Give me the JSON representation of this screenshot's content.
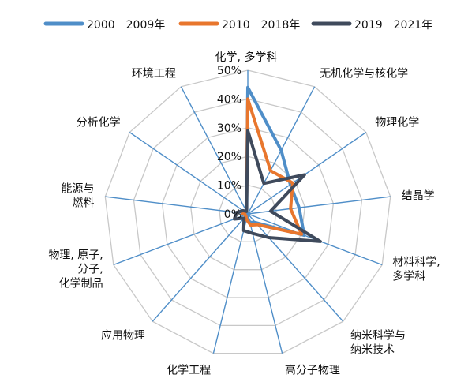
{
  "chart_data": {
    "type": "radar",
    "title": "",
    "axes": [
      [
        "化学, 多学科"
      ],
      [
        "无机化学与核化学"
      ],
      [
        "物理化学"
      ],
      [
        "结晶学"
      ],
      [
        "材料科学,",
        "多学科"
      ],
      [
        "纳米科学与",
        "纳米技术"
      ],
      [
        "高分子物理"
      ],
      [
        "化学工程"
      ],
      [
        "应用物理"
      ],
      [
        "物理, 原子,",
        "分子,",
        "化学制品"
      ],
      [
        "能源与",
        "燃料"
      ],
      [
        "分析化学"
      ],
      [
        "环境工程"
      ]
    ],
    "r_ticks": [
      0,
      10,
      20,
      30,
      40,
      50
    ],
    "r_tick_labels": [
      "0%",
      "10%",
      "20%",
      "30%",
      "40%",
      "50%"
    ],
    "r_max": 50,
    "grid": true,
    "legend_position": "top",
    "series": [
      {
        "name": "2000－2009年",
        "color": "#4f8ec8",
        "values": [
          44,
          25,
          18,
          18,
          21,
          4,
          3,
          1,
          1,
          1,
          2,
          1,
          1
        ]
      },
      {
        "name": "2010－2018年",
        "color": "#e8762d",
        "values": [
          40,
          17,
          19,
          15,
          20,
          5,
          4,
          2,
          1,
          1,
          2,
          1,
          1
        ]
      },
      {
        "name": "2019－2021年",
        "color": "#3f4a5c",
        "values": [
          29,
          12,
          24,
          8,
          27,
          11,
          7,
          6,
          2,
          5,
          4,
          2,
          1
        ]
      }
    ]
  }
}
